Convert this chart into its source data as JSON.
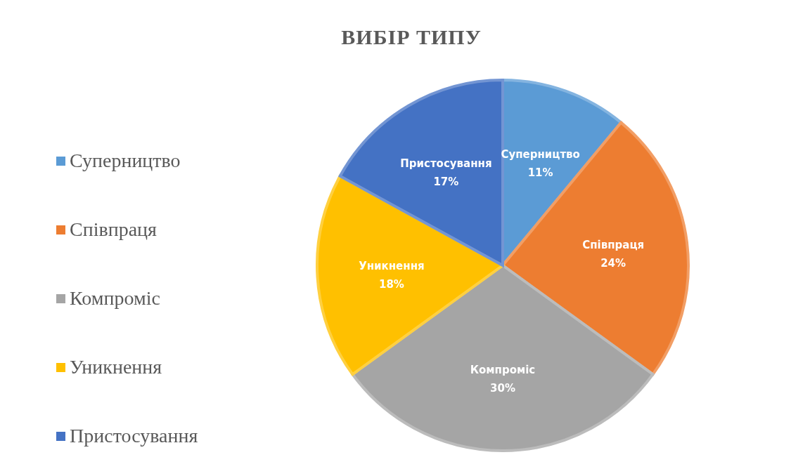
{
  "chart_data": {
    "type": "pie",
    "title": "ВИБІР ТИПУ",
    "categories": [
      "Суперництво",
      "Співпраця",
      "Компроміс",
      "Уникнення",
      "Пристосування"
    ],
    "values": [
      11,
      24,
      30,
      18,
      17
    ],
    "colors": [
      "#5b9bd5",
      "#ed7d31",
      "#a5a5a5",
      "#ffc000",
      "#4472c4"
    ],
    "value_labels": [
      "11%",
      "24%",
      "30%",
      "18%",
      "17%"
    ],
    "legend": "left"
  }
}
